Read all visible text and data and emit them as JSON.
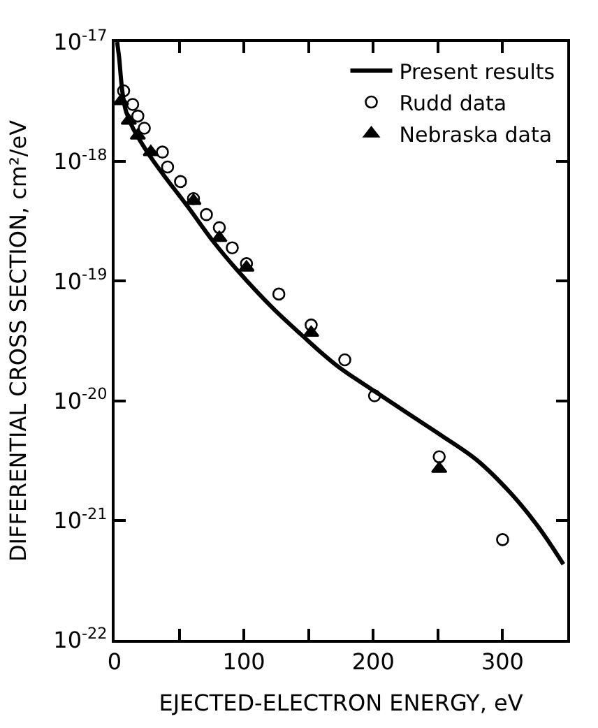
{
  "chart_data": {
    "type": "scatter",
    "xlabel": "EJECTED-ELECTRON ENERGY, eV",
    "ylabel": "DIFFERENTIAL CROSS SECTION, cm²/eV",
    "log": "y",
    "grid": false,
    "legend": "top right",
    "xlim": [
      0,
      350
    ],
    "ylim": [
      1e-22,
      1e-17
    ],
    "xticks": [
      0,
      {
        "value": 50,
        "label": null
      },
      100,
      {
        "value": 150,
        "label": null
      },
      200,
      {
        "value": 250,
        "label": null
      },
      300
    ],
    "yticks": [
      {
        "value": 1e-22,
        "label": "10$^{-22}$"
      },
      {
        "value": 1e-21,
        "label": "10$^{-21}$"
      },
      {
        "value": 1e-20,
        "label": "10$^{-20}$"
      },
      {
        "value": 1e-19,
        "label": "10$^{-19}$"
      },
      {
        "value": 1e-18,
        "label": "10$^{-18}$"
      },
      {
        "value": 1e-17,
        "label": "10$^{-17}$"
      }
    ],
    "series": [
      {
        "name": "Present results",
        "type": "line",
        "color": "#000000",
        "marker": "none",
        "line_style": "solid",
        "x": [
          2,
          3.4,
          9,
          24,
          58,
          77,
          95,
          122,
          144,
          171,
          201,
          227,
          253,
          280,
          306,
          328,
          347
        ],
        "values": [
          1e-17,
          7.6e-18,
          2.6e-18,
          1.26e-18,
          4e-19,
          2.1e-19,
          1.23e-19,
          6e-20,
          3.6e-20,
          2e-20,
          1.2e-20,
          7.8e-21,
          5.1e-21,
          3.2e-21,
          1.7e-21,
          8.7e-22,
          4.3e-22
        ]
      },
      {
        "name": "Rudd data",
        "color": "#000000",
        "marker": "circle",
        "x": [
          7,
          14,
          18,
          23,
          37,
          41,
          51,
          61,
          71,
          81,
          91,
          102,
          127,
          152,
          178,
          201,
          251,
          300
        ],
        "values": [
          3.9e-18,
          3e-18,
          2.4e-18,
          1.9e-18,
          1.2e-18,
          9e-19,
          6.8e-19,
          4.9e-19,
          3.6e-19,
          2.8e-19,
          1.9e-19,
          1.4e-19,
          7.8e-20,
          4.3e-20,
          2.2e-20,
          1.1e-20,
          3.4e-21,
          6.9e-22
        ]
      },
      {
        "name": "Nebraska data",
        "color": "#000000",
        "marker": "triangle",
        "x": [
          5,
          11,
          18,
          28,
          61,
          81,
          102,
          152,
          251
        ],
        "values": [
          3.2e-18,
          2.2e-18,
          1.65e-18,
          1.2e-18,
          4.7e-19,
          2.3e-19,
          1.3e-19,
          3.7e-20,
          2.7e-21
        ]
      }
    ]
  }
}
